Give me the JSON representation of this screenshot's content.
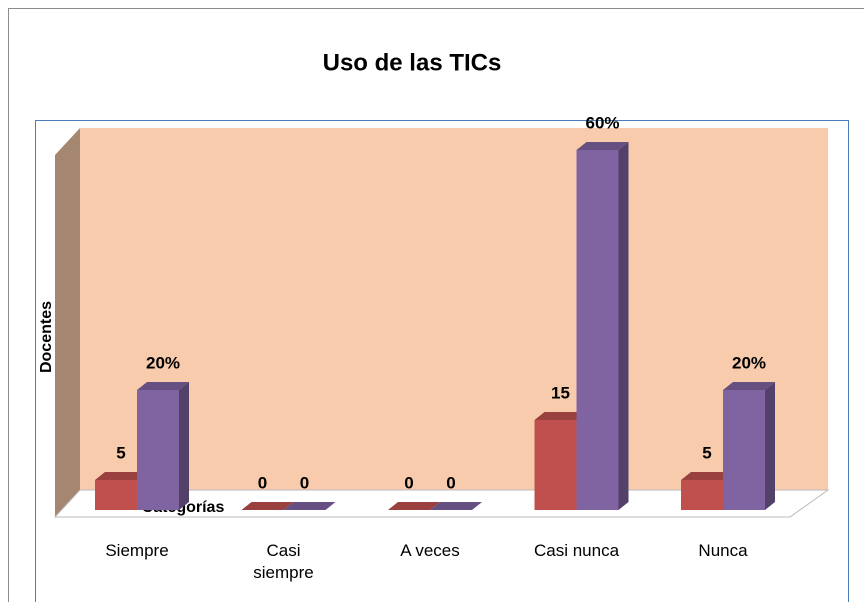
{
  "chart_data": {
    "type": "bar3d",
    "title": "Uso de las TICs",
    "x_label": "Categorías",
    "y_label": "Docentes",
    "categories": [
      "Siempre",
      "Casi siempre",
      "A veces",
      "Casi nunca",
      "Nunca"
    ],
    "series": [
      {
        "color": "#c0504d",
        "values": [
          5,
          0,
          0,
          15,
          5
        ]
      },
      {
        "color": "#8064a2",
        "values": [
          20,
          0,
          0,
          60,
          20
        ],
        "value_labels": [
          "20%",
          "0",
          "0",
          "60%",
          "20%"
        ]
      }
    ]
  }
}
